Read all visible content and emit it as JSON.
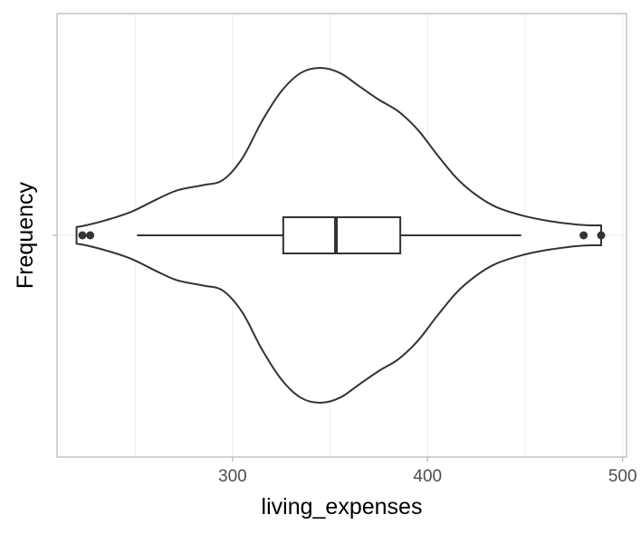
{
  "chart_data": {
    "type": "violin",
    "xlabel": "living_expenses",
    "ylabel": "Frequency",
    "xlim": [
      210,
      502
    ],
    "x_ticks": [
      300,
      400,
      500
    ],
    "grid": true,
    "box": {
      "q1": 326,
      "median": 353,
      "q3": 386,
      "whisker_low": 251,
      "whisker_high": 448
    },
    "outliers": [
      223,
      227,
      480,
      489
    ],
    "density": [
      {
        "x": 220,
        "d": 0.05
      },
      {
        "x": 225,
        "d": 0.06
      },
      {
        "x": 235,
        "d": 0.09
      },
      {
        "x": 248,
        "d": 0.14
      },
      {
        "x": 262,
        "d": 0.22
      },
      {
        "x": 272,
        "d": 0.27
      },
      {
        "x": 285,
        "d": 0.3
      },
      {
        "x": 295,
        "d": 0.33
      },
      {
        "x": 305,
        "d": 0.46
      },
      {
        "x": 315,
        "d": 0.68
      },
      {
        "x": 325,
        "d": 0.86
      },
      {
        "x": 335,
        "d": 0.97
      },
      {
        "x": 345,
        "d": 1.0
      },
      {
        "x": 355,
        "d": 0.97
      },
      {
        "x": 365,
        "d": 0.89
      },
      {
        "x": 375,
        "d": 0.81
      },
      {
        "x": 385,
        "d": 0.74
      },
      {
        "x": 395,
        "d": 0.63
      },
      {
        "x": 405,
        "d": 0.48
      },
      {
        "x": 415,
        "d": 0.34
      },
      {
        "x": 425,
        "d": 0.24
      },
      {
        "x": 435,
        "d": 0.17
      },
      {
        "x": 448,
        "d": 0.12
      },
      {
        "x": 460,
        "d": 0.09
      },
      {
        "x": 472,
        "d": 0.07
      },
      {
        "x": 482,
        "d": 0.06
      },
      {
        "x": 489,
        "d": 0.06
      }
    ]
  }
}
